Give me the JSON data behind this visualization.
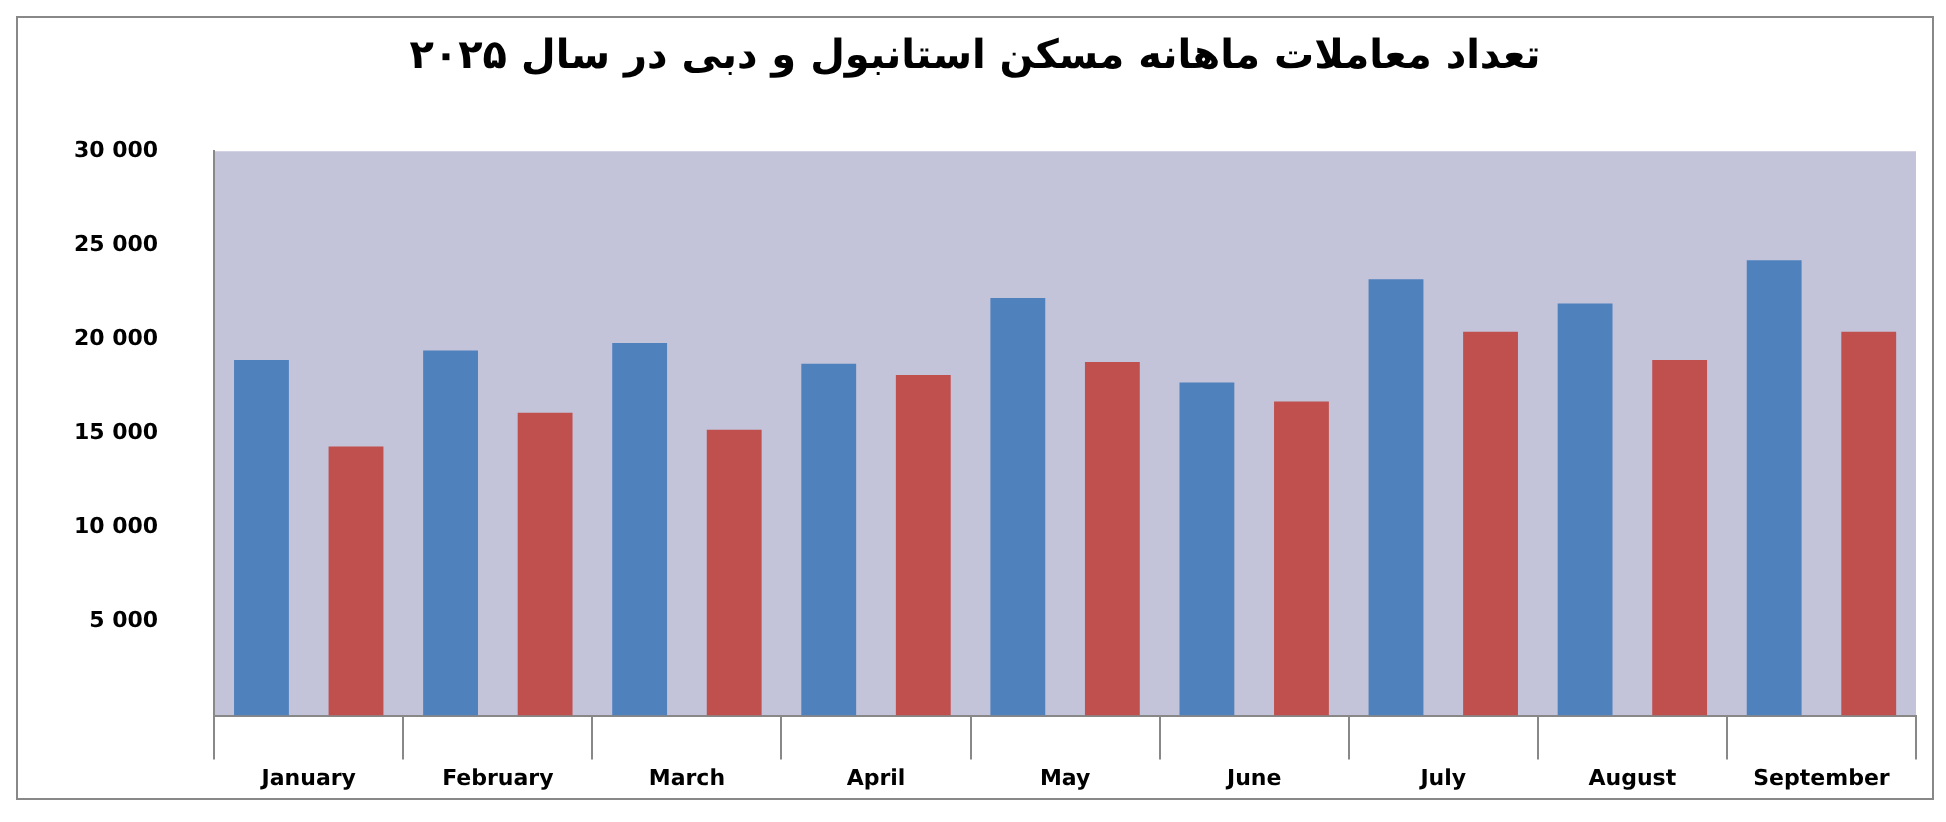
{
  "chart_data": {
    "type": "bar",
    "title": "تعداد معاملات ماهانه مسکن استانبول و دبی در سال ۲۰۲۵",
    "categories": [
      "January",
      "February",
      "March",
      "April",
      "May",
      "June",
      "July",
      "August",
      "September"
    ],
    "series": [
      {
        "color": "#4f81bd",
        "values": [
          18900,
          19400,
          19800,
          18700,
          22200,
          17700,
          23200,
          21900,
          24200
        ]
      },
      {
        "color": "#c0504d",
        "values": [
          14300,
          16100,
          15200,
          18100,
          18800,
          16700,
          20400,
          18900,
          20400
        ]
      }
    ],
    "ylim": [
      0,
      30000
    ],
    "yticks": [
      {
        "value": 0,
        "label": null
      },
      {
        "value": 5000,
        "label": "5 000"
      },
      {
        "value": 10000,
        "label": "10 000"
      },
      {
        "value": 15000,
        "label": "15 000"
      },
      {
        "value": 20000,
        "label": "20 000"
      },
      {
        "value": 25000,
        "label": "25 000"
      },
      {
        "value": 30000,
        "label": "30 000"
      }
    ],
    "grid": false,
    "legend": false
  }
}
